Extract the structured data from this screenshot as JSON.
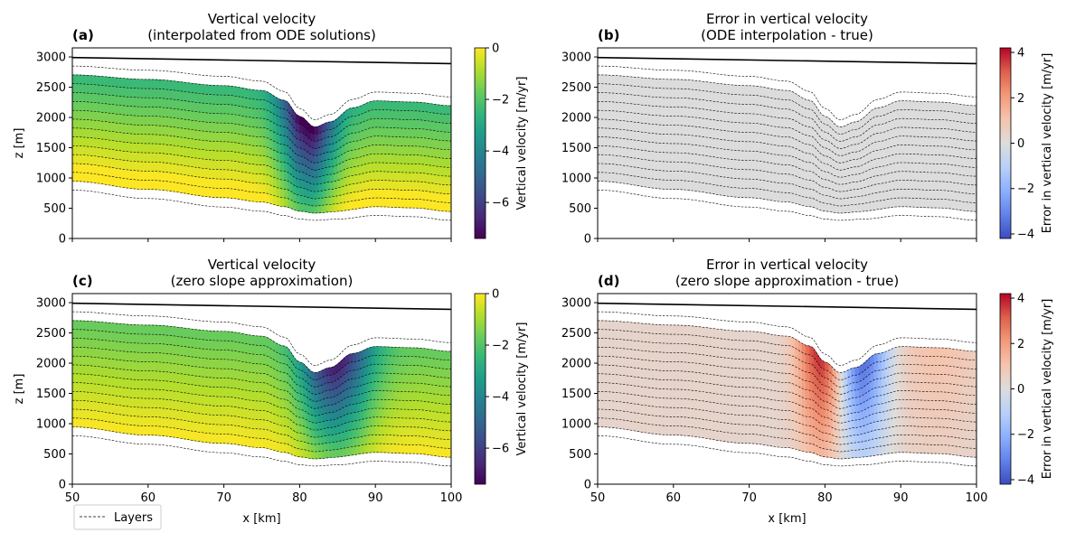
{
  "figure": {
    "legend_label": "Layers",
    "xlabel": "x [km]",
    "ylabel": "z [m]"
  },
  "chart_data": [
    {
      "panel": "(a)",
      "type": "heatmap",
      "title_line1": "Vertical velocity",
      "title_line2": "(interpolated from ODE solutions)",
      "xlim": [
        50,
        100
      ],
      "ylim": [
        0,
        3150
      ],
      "xticks": [
        50,
        60,
        70,
        80,
        90,
        100
      ],
      "yticks": [
        0,
        500,
        1000,
        1500,
        2000,
        2500,
        3000
      ],
      "show_xlabel": false,
      "show_ylabel": true,
      "colorbar": {
        "label": "Vertical velocity [m/yr]",
        "range": [
          -7.4,
          0
        ],
        "ticks": [
          0,
          -2,
          -4,
          -6
        ],
        "tick_labels": [
          "0",
          "−2",
          "−4",
          "−6"
        ],
        "cmap": "viridis"
      },
      "field": "ode"
    },
    {
      "panel": "(b)",
      "type": "heatmap",
      "title_line1": "Error in vertical velocity",
      "title_line2": "(ODE interpolation - true)",
      "xlim": [
        50,
        100
      ],
      "ylim": [
        0,
        3150
      ],
      "xticks": [
        50,
        60,
        70,
        80,
        90,
        100
      ],
      "yticks": [
        0,
        500,
        1000,
        1500,
        2000,
        2500,
        3000
      ],
      "show_xlabel": false,
      "show_ylabel": false,
      "colorbar": {
        "label": "Error in vertical velocity [m/yr]",
        "range": [
          -4.2,
          4.2
        ],
        "ticks": [
          4,
          2,
          0,
          -2,
          -4
        ],
        "tick_labels": [
          "4",
          "2",
          "0",
          "−2",
          "−4"
        ],
        "cmap": "coolwarm"
      },
      "field": "ode_error"
    },
    {
      "panel": "(c)",
      "type": "heatmap",
      "title_line1": "Vertical velocity",
      "title_line2": "(zero slope approximation)",
      "xlim": [
        50,
        100
      ],
      "ylim": [
        0,
        3150
      ],
      "xticks": [
        50,
        60,
        70,
        80,
        90,
        100
      ],
      "yticks": [
        0,
        500,
        1000,
        1500,
        2000,
        2500,
        3000
      ],
      "show_xlabel": true,
      "show_ylabel": true,
      "colorbar": {
        "label": "Vertical velocity [m/yr]",
        "range": [
          -7.4,
          0
        ],
        "ticks": [
          0,
          -2,
          -4,
          -6
        ],
        "tick_labels": [
          "0",
          "−2",
          "−4",
          "−6"
        ],
        "cmap": "viridis"
      },
      "field": "zero"
    },
    {
      "panel": "(d)",
      "type": "heatmap",
      "title_line1": "Error in vertical velocity",
      "title_line2": "(zero slope approximation - true)",
      "xlim": [
        50,
        100
      ],
      "ylim": [
        0,
        3150
      ],
      "xticks": [
        50,
        60,
        70,
        80,
        90,
        100
      ],
      "yticks": [
        0,
        500,
        1000,
        1500,
        2000,
        2500,
        3000
      ],
      "show_xlabel": true,
      "show_ylabel": false,
      "colorbar": {
        "label": "Error in vertical velocity [m/yr]",
        "range": [
          -4.2,
          4.2
        ],
        "ticks": [
          4,
          2,
          0,
          -2,
          -4
        ],
        "tick_labels": [
          "4",
          "2",
          "0",
          "−2",
          "−4"
        ],
        "cmap": "coolwarm"
      },
      "field": "zero_error"
    }
  ],
  "surface": {
    "x": [
      50,
      100
    ],
    "z": [
      2990,
      2890
    ]
  },
  "layer_lines": {
    "count": 15,
    "top_x": [
      50,
      60,
      70,
      75,
      78,
      80,
      82,
      84,
      87,
      90,
      95,
      100
    ],
    "top_z": [
      2850,
      2780,
      2680,
      2600,
      2430,
      2150,
      1960,
      2050,
      2300,
      2420,
      2400,
      2340
    ],
    "bottom_x": [
      50,
      60,
      70,
      75,
      78,
      80,
      82,
      85,
      90,
      95,
      100
    ],
    "bottom_z": [
      800,
      660,
      520,
      450,
      380,
      320,
      300,
      320,
      380,
      360,
      300
    ]
  }
}
